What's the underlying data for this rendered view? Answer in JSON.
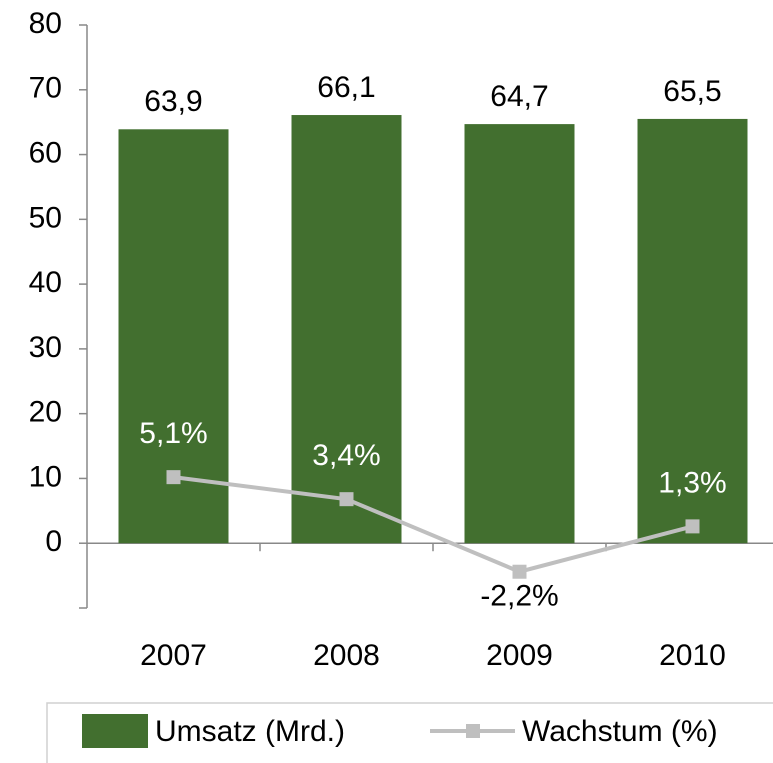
{
  "chart_data": {
    "type": "bar",
    "categories": [
      "2007",
      "2008",
      "2009",
      "2010"
    ],
    "series": [
      {
        "name": "Umsatz (Mrd.)",
        "type": "bar",
        "color": "#426f2f",
        "values": [
          63.9,
          66.1,
          64.7,
          65.5
        ],
        "value_labels": [
          "63,9",
          "66,1",
          "64,7",
          "65,5"
        ]
      },
      {
        "name": "Wachstum (%)",
        "type": "line",
        "axis": "y2",
        "color": "#bfbfbf",
        "values": [
          5.1,
          3.4,
          -2.2,
          1.3
        ],
        "value_labels": [
          "5,1%",
          "3,4%",
          "-2,2%",
          "1,3%"
        ]
      }
    ],
    "ylim": [
      -10,
      80
    ],
    "yticks": [
      0,
      10,
      20,
      30,
      40,
      50,
      60,
      70,
      80
    ],
    "y2lim": [
      -5,
      40
    ],
    "legend": "bottom"
  }
}
